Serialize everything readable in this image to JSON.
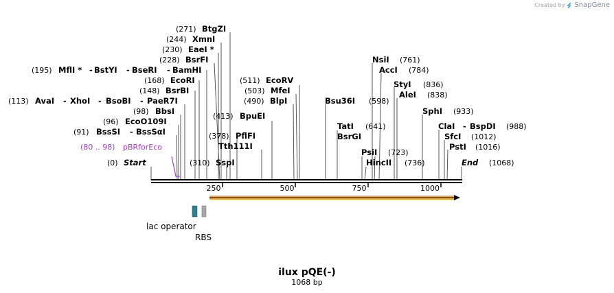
{
  "credit": {
    "prefix": "Created by",
    "brand": "SnapGene"
  },
  "map": {
    "name": "ilux pQE(-)",
    "size": "1068 bp",
    "length": 1068
  },
  "ticks": [
    "250",
    "500",
    "750",
    "1000"
  ],
  "sites": [
    {
      "pos": "(271)",
      "name": "BtgZI"
    },
    {
      "pos": "(244)",
      "name": "XmnI"
    },
    {
      "pos": "(230)",
      "name": "EaeI *"
    },
    {
      "pos": "(228)",
      "name": "BsrFI"
    },
    {
      "pos": "(195)",
      "names": [
        "MflI *",
        "BstYI",
        "BseRI",
        "BamHI"
      ]
    },
    {
      "pos": "(168)",
      "name": "EcoRI"
    },
    {
      "pos": "(148)",
      "name": "BsrBI"
    },
    {
      "pos": "(113)",
      "names": [
        "AvaI",
        "XhoI",
        "BsoBI",
        "PaeR7I"
      ]
    },
    {
      "pos": "(98)",
      "name": "BbsI"
    },
    {
      "pos": "(96)",
      "name": "EcoO109I"
    },
    {
      "pos": "(91)",
      "names": [
        "BssSI",
        "BssSαI"
      ]
    },
    {
      "pos": "(0)",
      "name": "Start"
    },
    {
      "pos": "(310)",
      "name": "SspI"
    },
    {
      "pos": "(378)",
      "name": "PflFI"
    },
    {
      "name": "Tth111I"
    },
    {
      "pos": "(413)",
      "name": "BpuEI"
    },
    {
      "pos": "(511)",
      "name": "EcoRV"
    },
    {
      "pos": "(503)",
      "name": "MfeI"
    },
    {
      "pos": "(490)",
      "name": "BlpI"
    },
    {
      "name": "Bsu36I"
    },
    {
      "pos": "(598)"
    },
    {
      "name": "TatI"
    },
    {
      "pos": "(641)"
    },
    {
      "name": "BsrGI"
    },
    {
      "name": "PsiI"
    },
    {
      "pos": "(723)"
    },
    {
      "name": "HincII"
    },
    {
      "pos": "(736)"
    },
    {
      "name": "NsiI",
      "pos": "(761)"
    },
    {
      "name": "AccI",
      "pos": "(784)"
    },
    {
      "name": "StyI",
      "pos": "(836)"
    },
    {
      "name": "AleI",
      "pos": "(838)"
    },
    {
      "name": "SphI",
      "pos": "(933)"
    },
    {
      "names": [
        "ClaI",
        "BspDI"
      ],
      "pos": "(988)"
    },
    {
      "name": "SfcI",
      "pos": "(1012)"
    },
    {
      "name": "PstI",
      "pos": "(1016)"
    },
    {
      "name": "End",
      "pos": "(1068)"
    }
  ],
  "primer": {
    "range": "(80 .. 98)",
    "name": "pBRforEco",
    "color": "#a63ad6"
  },
  "features": {
    "lac_operator": {
      "label": "lac operator",
      "color": "#2f7f8f"
    },
    "rbs": {
      "label": "RBS",
      "color": "#a8a8a8"
    },
    "orf": {
      "color": "#f0a830"
    }
  }
}
